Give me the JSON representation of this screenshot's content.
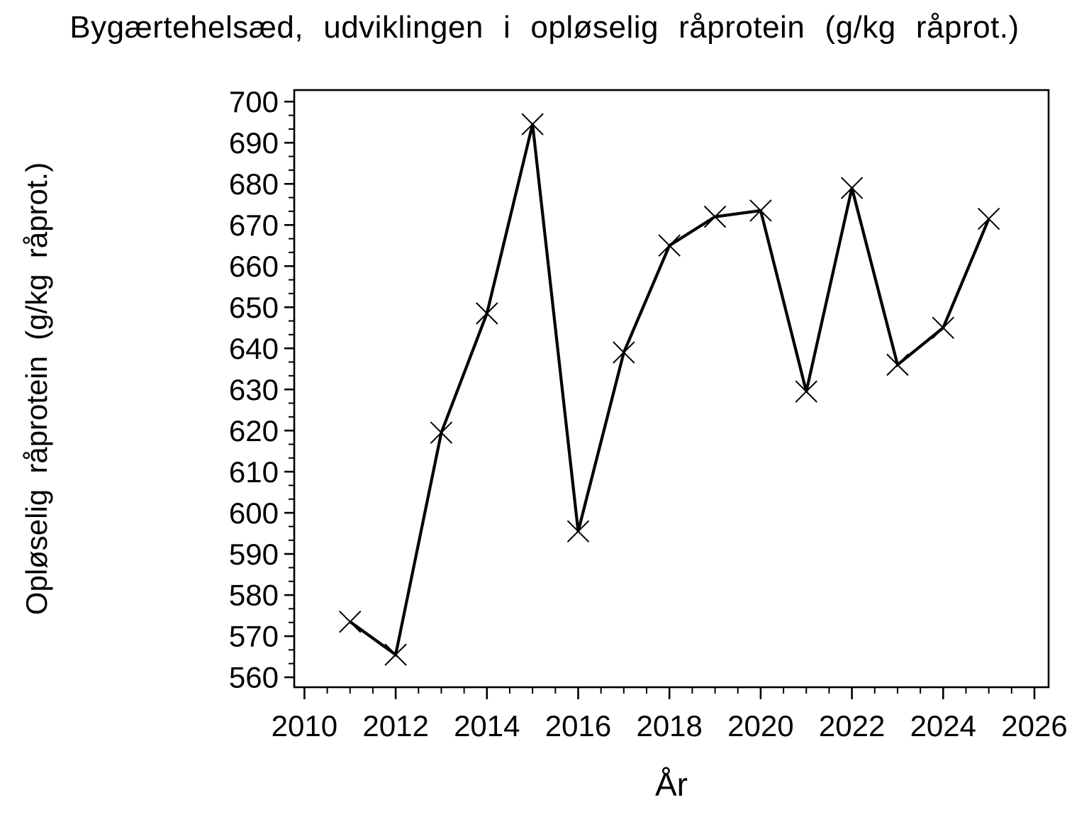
{
  "page": {
    "background_color": "#ffffff",
    "text_color": "#000000"
  },
  "chart_data": {
    "type": "line",
    "title": "Bygærtehelsæd, udviklingen i opløselig råprotein (g/kg råprot.)",
    "xlabel": "År",
    "ylabel": "Opløselig råprotein (g/kg råprot.)",
    "series": [
      {
        "name": "Opløselig råprotein",
        "x": [
          2011,
          2012,
          2013,
          2014,
          2015,
          2016,
          2017,
          2018,
          2019,
          2020,
          2021,
          2022,
          2023,
          2024,
          2025
        ],
        "y": [
          573.5,
          565.5,
          619.5,
          648.5,
          694.5,
          595.5,
          639,
          665,
          672,
          673.5,
          629.5,
          679,
          636,
          645,
          671.5
        ]
      }
    ],
    "x_ticks": [
      2010,
      2012,
      2014,
      2016,
      2018,
      2020,
      2022,
      2024,
      2026
    ],
    "y_ticks": [
      560,
      570,
      580,
      590,
      600,
      610,
      620,
      630,
      640,
      650,
      660,
      670,
      680,
      690,
      700
    ],
    "x_minor_ticks_per_interval": 3,
    "y_minor_ticks_per_interval": 2,
    "xlim": [
      2010,
      2026
    ],
    "ylim": [
      560,
      700
    ],
    "grid": false,
    "legend_position": "none",
    "marker": "x",
    "line_color": "#000000",
    "axis_color": "#000000",
    "frame": true
  }
}
